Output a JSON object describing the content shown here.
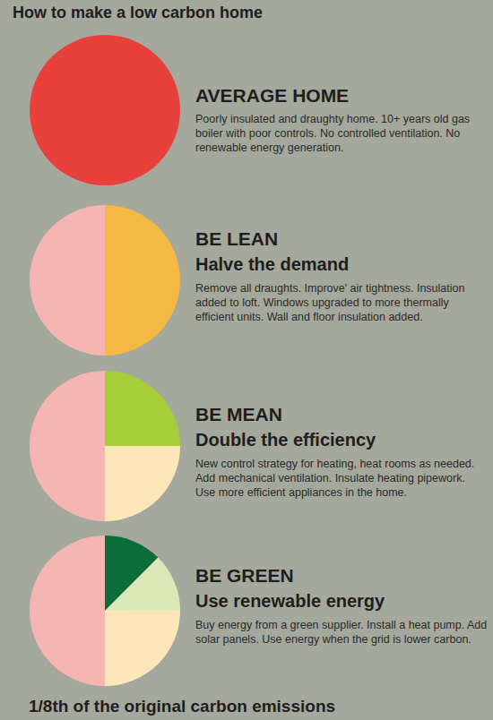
{
  "title": "How to make a low carbon home",
  "footer": "1/8th of the original carbon emissions",
  "chart_data": [
    {
      "type": "pie",
      "title": "AVERAGE HOME",
      "description": "Poorly insulated and draughty home. 10+ years old gas boiler with poor controls. No controlled ventilation. No renewable energy generation.",
      "values": [
        100
      ],
      "colors": [
        "#e8413c"
      ]
    },
    {
      "type": "pie",
      "title": "BE LEAN",
      "subtitle": "Halve the demand",
      "description": "Remove all draughts. Improve' air tightness. Insulation added to loft. Windows upgraded to more thermally efficient units. Wall and floor insulation added.",
      "values": [
        50,
        50
      ],
      "colors": [
        "#f4b942",
        "#f5b5b3"
      ]
    },
    {
      "type": "pie",
      "title": "BE MEAN",
      "subtitle": "Double the efficiency",
      "description": "New control strategy for heating, heat rooms as needed. Add mechanical ventilation. Insulate heating pipework. Use more efficient appliances in the home.",
      "values": [
        25,
        25,
        50
      ],
      "colors": [
        "#a6ce39",
        "#fde7b8",
        "#f5b5b3"
      ]
    },
    {
      "type": "pie",
      "title": "BE GREEN",
      "subtitle": "Use renewable energy",
      "description": "Buy energy from a green supplier. Install a heat pump. Add solar panels. Use energy when the grid is lower carbon.",
      "values": [
        12.5,
        12.5,
        25,
        50
      ],
      "colors": [
        "#0b6e3a",
        "#dbe8b8",
        "#fde7b8",
        "#f5b5b3"
      ]
    }
  ]
}
